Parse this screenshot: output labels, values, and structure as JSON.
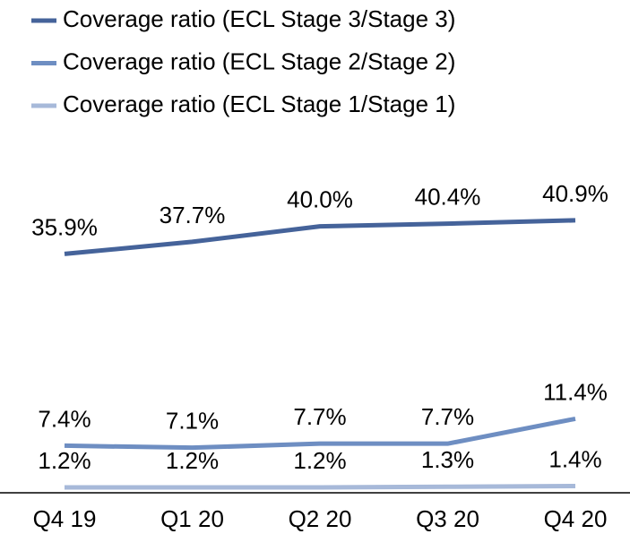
{
  "chart_data": {
    "type": "line",
    "categories": [
      "Q4 19",
      "Q1 20",
      "Q2 20",
      "Q3 20",
      "Q4 20"
    ],
    "series": [
      {
        "name": "Coverage ratio (ECL Stage 3/Stage 3)",
        "color": "#45639a",
        "values": [
          35.9,
          37.7,
          40.0,
          40.4,
          40.9
        ],
        "value_labels": [
          "35.9%",
          "37.7%",
          "40.0%",
          "40.4%",
          "40.9%"
        ]
      },
      {
        "name": "Coverage ratio (ECL Stage 2/Stage 2)",
        "color": "#6e8ec2",
        "values": [
          7.4,
          7.1,
          7.7,
          7.7,
          11.4
        ],
        "value_labels": [
          "7.4%",
          "7.1%",
          "7.7%",
          "7.7%",
          "11.4%"
        ]
      },
      {
        "name": "Coverage ratio (ECL Stage 1/Stage 1)",
        "color": "#a7b9d9",
        "values": [
          1.2,
          1.2,
          1.2,
          1.3,
          1.4
        ],
        "value_labels": [
          "1.2%",
          "1.2%",
          "1.2%",
          "1.3%",
          "1.4%"
        ]
      }
    ],
    "ylim": [
      0,
      55
    ],
    "legend": "top-left"
  }
}
